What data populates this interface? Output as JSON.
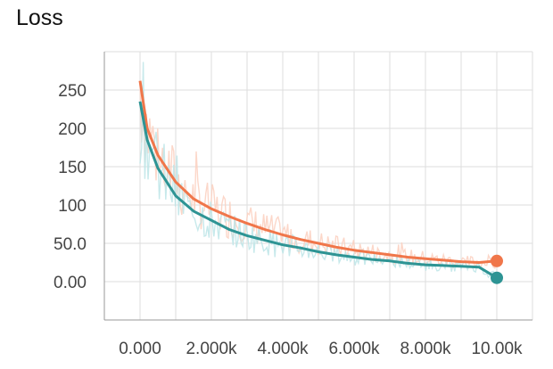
{
  "chart_data": {
    "type": "line",
    "title": "Loss",
    "xlabel": "",
    "ylabel": "",
    "xlim": [
      -1000,
      11000
    ],
    "ylim": [
      -50,
      300
    ],
    "grid": true,
    "x_ticks": [
      {
        "value": 0,
        "label": "0.000"
      },
      {
        "value": 2000,
        "label": "2.000k"
      },
      {
        "value": 4000,
        "label": "4.000k"
      },
      {
        "value": 6000,
        "label": "6.000k"
      },
      {
        "value": 8000,
        "label": "8.000k"
      },
      {
        "value": 10000,
        "label": "10.00k"
      }
    ],
    "y_ticks": [
      {
        "value": 0,
        "label": "0.00"
      },
      {
        "value": 50,
        "label": "50.0"
      },
      {
        "value": 100,
        "label": "100"
      },
      {
        "value": 150,
        "label": "150"
      },
      {
        "value": 200,
        "label": "200"
      },
      {
        "value": 250,
        "label": "250"
      }
    ],
    "x": [
      0,
      200,
      500,
      1000,
      1500,
      2000,
      2500,
      3000,
      3500,
      4000,
      4500,
      5000,
      5500,
      6000,
      6500,
      7000,
      7500,
      8000,
      8500,
      9000,
      9500,
      10000
    ],
    "series": [
      {
        "color": "#f0764a",
        "raw_color": "#fcd0c0",
        "values": [
          262,
          200,
          165,
          130,
          108,
          95,
          85,
          76,
          68,
          61,
          55,
          50,
          45,
          41,
          38,
          35,
          32,
          30,
          28,
          26,
          25,
          27
        ]
      },
      {
        "color": "#2e9494",
        "raw_color": "#bde5e8",
        "values": [
          235,
          185,
          148,
          112,
          92,
          80,
          68,
          60,
          54,
          48,
          44,
          39,
          35,
          32,
          29,
          27,
          24,
          22,
          21,
          20,
          19,
          5
        ]
      }
    ]
  }
}
